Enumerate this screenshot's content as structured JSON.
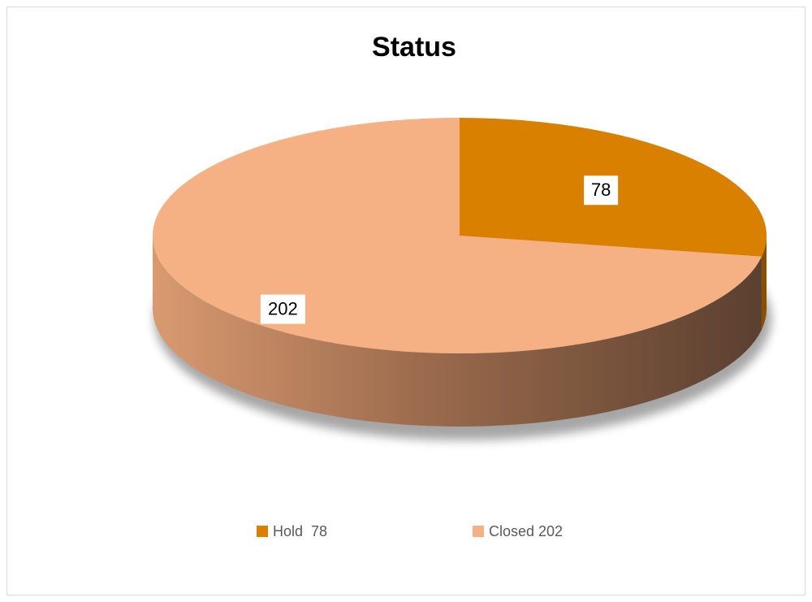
{
  "chart_data": {
    "type": "pie",
    "title": "Status",
    "categories": [
      "Hold  78",
      "Closed 202"
    ],
    "values": [
      78,
      202
    ],
    "colors": [
      "#d98000",
      "#f5b183"
    ],
    "legend": "bottom"
  }
}
